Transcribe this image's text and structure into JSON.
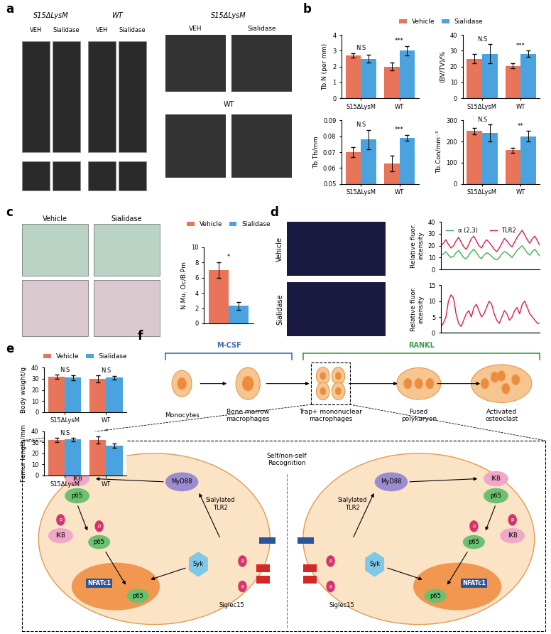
{
  "panel_labels": [
    "a",
    "b",
    "c",
    "d",
    "e",
    "f"
  ],
  "panel_a": {
    "left": {
      "groups": [
        "S15ΔLysM",
        "WT"
      ],
      "columns": [
        "VEH",
        "Sialidase",
        "VEH",
        "Sialidase"
      ]
    },
    "right": {
      "rows": [
        "S15ΔLysM",
        "WT"
      ],
      "columns": [
        "VEH",
        "Sialidase"
      ]
    }
  },
  "panel_c_images": [
    "Vehicle",
    "Sialidase"
  ],
  "panel_d_images": [
    "Vehicle",
    "Sialidase"
  ],
  "diagram": {
    "factors": [
      "M-CSF",
      "RANKL"
    ],
    "stages": [
      "Monocytes",
      "Bone marrow\nmacrophages",
      "Trap+ mononuclear\nmacrophages",
      "Fused\npolykaryon",
      "Activated\nosteoclast"
    ],
    "recognition": "Self/non-self\nRecognition",
    "molecules": {
      "ikb": "IKB",
      "p65": "p65",
      "myd88": "MyD88",
      "tlr2": "Sialylated\nTLR2",
      "siglec": "Siglec15",
      "syk": "Syk",
      "nfat": "NFATc1",
      "phospho": "p"
    }
  },
  "chart_data": [
    {
      "type": "bar",
      "ylabel": "Tb.N (per mm)",
      "categories": [
        "S15ΔLysM",
        "WT"
      ],
      "series": [
        {
          "name": "Vehicle",
          "color": "#e8745a",
          "values": [
            2.7,
            2.0
          ],
          "errors": [
            0.15,
            0.25
          ]
        },
        {
          "name": "Sialidase",
          "color": "#4aa3df",
          "values": [
            2.5,
            3.0
          ],
          "errors": [
            0.25,
            0.3
          ]
        }
      ],
      "annotations": [
        "N.S",
        "***"
      ],
      "ylim": [
        0,
        4
      ],
      "yticks": [
        0,
        1,
        2,
        3,
        4
      ],
      "legend": "upper center"
    },
    {
      "type": "bar",
      "ylabel": "(BV/TV)/%",
      "categories": [
        "S15ΔLysM",
        "WT"
      ],
      "series": [
        {
          "name": "Vehicle",
          "color": "#e8745a",
          "values": [
            25,
            20.5
          ],
          "errors": [
            3,
            1.5
          ]
        },
        {
          "name": "Sialidase",
          "color": "#4aa3df",
          "values": [
            28,
            28
          ],
          "errors": [
            6,
            2
          ]
        }
      ],
      "annotations": [
        "N.S",
        "***"
      ],
      "ylim": [
        0,
        40
      ],
      "yticks": [
        0,
        10,
        20,
        30,
        40
      ]
    },
    {
      "type": "bar",
      "ylabel": "Tb.Th/mm",
      "categories": [
        "S15ΔLysM",
        "WT"
      ],
      "series": [
        {
          "name": "Vehicle",
          "color": "#e8745a",
          "values": [
            0.07,
            0.063
          ],
          "errors": [
            0.003,
            0.005
          ]
        },
        {
          "name": "Sialidase",
          "color": "#4aa3df",
          "values": [
            0.078,
            0.079
          ],
          "errors": [
            0.006,
            0.002
          ]
        }
      ],
      "annotations": [
        "N.S",
        "***"
      ],
      "ylim": [
        0.05,
        0.09
      ],
      "yticks": [
        0.05,
        0.06,
        0.07,
        0.08,
        0.09
      ]
    },
    {
      "type": "bar",
      "ylabel": "Tb.Con/mm⁻³",
      "categories": [
        "S15ΔLysM",
        "WT"
      ],
      "series": [
        {
          "name": "Vehicle",
          "color": "#e8745a",
          "values": [
            250,
            160
          ],
          "errors": [
            15,
            12
          ]
        },
        {
          "name": "Sialidase",
          "color": "#4aa3df",
          "values": [
            240,
            225
          ],
          "errors": [
            40,
            25
          ]
        }
      ],
      "annotations": [
        "N.S",
        "**"
      ],
      "ylim": [
        0,
        300
      ],
      "yticks": [
        0,
        100,
        200,
        300
      ]
    },
    {
      "type": "bar",
      "ylabel": "N.Mu. Oc/B.Pm",
      "categories": [
        null
      ],
      "series": [
        {
          "name": "Vehicle",
          "color": "#e8745a",
          "values": [
            7
          ],
          "errors": [
            1
          ]
        },
        {
          "name": "Sialidase",
          "color": "#4aa3df",
          "values": [
            2.3
          ],
          "errors": [
            0.5
          ]
        }
      ],
      "annotations": [
        "*"
      ],
      "ylim": [
        0,
        10
      ],
      "yticks": [
        0,
        2,
        4,
        6,
        8,
        10
      ],
      "legend": "upper center"
    },
    {
      "type": "line",
      "ylabel": "Relative fluor.\nintensity",
      "tick_labels": "y",
      "series": [
        {
          "name": "α (2,3)",
          "color": "#3cb44b",
          "values": [
            12,
            13,
            15,
            12,
            10,
            11,
            14,
            16,
            13,
            10,
            9,
            12,
            15,
            17,
            14,
            11,
            9,
            12,
            14,
            13,
            11,
            9,
            8,
            10,
            13,
            15,
            14,
            12,
            10,
            13,
            16,
            18,
            20,
            17,
            14,
            12,
            15,
            17,
            14,
            11
          ]
        },
        {
          "name": "TLR2",
          "color": "#e6194b",
          "values": [
            20,
            22,
            25,
            21,
            18,
            20,
            24,
            27,
            23,
            19,
            17,
            21,
            26,
            28,
            24,
            20,
            18,
            22,
            25,
            23,
            20,
            17,
            15,
            18,
            22,
            26,
            24,
            21,
            19,
            23,
            27,
            30,
            33,
            29,
            25,
            22,
            26,
            28,
            24,
            20
          ]
        }
      ],
      "ylim": [
        0,
        40
      ],
      "yticks": [
        0,
        10,
        20,
        30,
        40
      ],
      "legend": "upper left"
    },
    {
      "type": "line",
      "ylabel": "Relative fluor.\nintensity",
      "tick_labels": "y",
      "series": [
        {
          "name": "α (2,3)",
          "color": "#3cb44b",
          "values": [
            0,
            0,
            0,
            0,
            0,
            0,
            0,
            0,
            0,
            0,
            0,
            0,
            0,
            0,
            0,
            0,
            0,
            0,
            0,
            0,
            0,
            0,
            0,
            0,
            0,
            0,
            0,
            0,
            0,
            0,
            0,
            0,
            0,
            0,
            0,
            0,
            0,
            0,
            0,
            0
          ]
        },
        {
          "name": "TLR2",
          "color": "#e6194b",
          "values": [
            2,
            3,
            5,
            10,
            12,
            11,
            6,
            3,
            2,
            4,
            6,
            7,
            5,
            8,
            9,
            7,
            5,
            6,
            8,
            10,
            9,
            6,
            4,
            3,
            5,
            7,
            6,
            4,
            5,
            7,
            8,
            6,
            9,
            10,
            8,
            6,
            5,
            4,
            3,
            3
          ]
        }
      ],
      "ylim": [
        0,
        15
      ],
      "yticks": [
        0,
        5,
        10,
        15
      ]
    },
    {
      "type": "bar",
      "ylabel": "Body weight/g",
      "categories": [
        "S15ΔLysM",
        "WT"
      ],
      "series": [
        {
          "name": "Vehicle",
          "color": "#e8745a",
          "values": [
            32,
            30
          ],
          "errors": [
            2,
            3
          ]
        },
        {
          "name": "Sialidase",
          "color": "#4aa3df",
          "values": [
            31,
            31
          ],
          "errors": [
            2,
            1.5
          ]
        }
      ],
      "annotations": [
        "N.S",
        "N.S"
      ],
      "ylim": [
        0,
        40
      ],
      "yticks": [
        0,
        10,
        20,
        30,
        40
      ],
      "legend": "upper center"
    },
    {
      "type": "bar",
      "ylabel": "Femur length/mm",
      "categories": [
        "S15ΔLysM",
        "WT"
      ],
      "series": [
        {
          "name": "Vehicle",
          "color": "#e8745a",
          "values": [
            32,
            32
          ],
          "errors": [
            2,
            3
          ]
        },
        {
          "name": "Sialidase",
          "color": "#4aa3df",
          "values": [
            32.5,
            27
          ],
          "errors": [
            1.5,
            2
          ]
        }
      ],
      "annotations": [
        "N.S",
        "*"
      ],
      "ylim": [
        0,
        40
      ],
      "yticks": [
        0,
        10,
        20,
        30,
        40
      ]
    }
  ]
}
